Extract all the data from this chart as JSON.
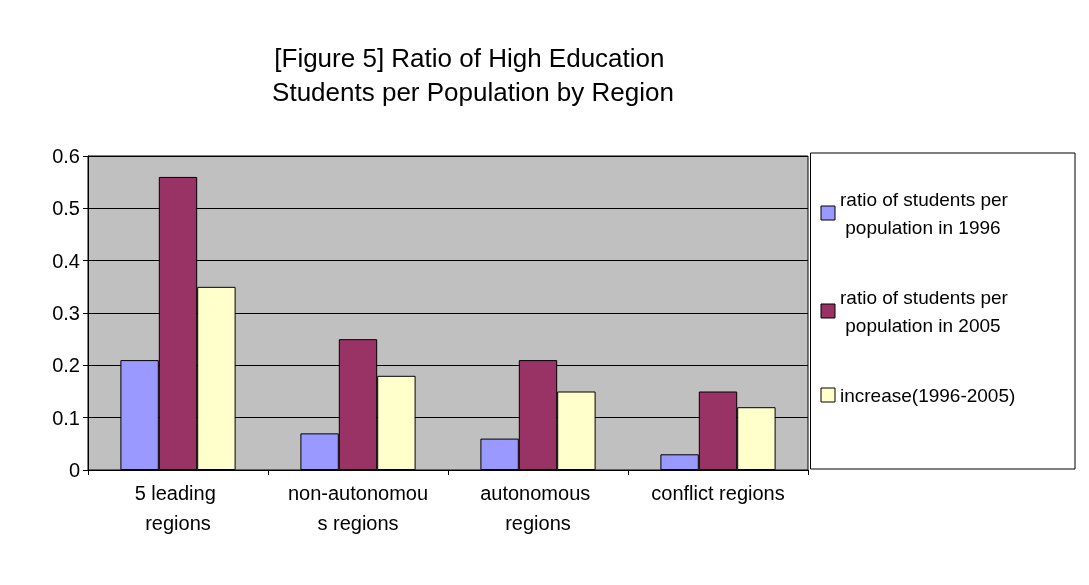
{
  "chart_data": {
    "type": "bar",
    "title": "[Figure 5] Ratio of High Education Students per Population by Region",
    "categories": [
      "5 leading regions",
      "non-autonomous regions",
      "autonomous regions",
      "conflict regions"
    ],
    "series": [
      {
        "name": "ratio of students per population in 1996",
        "color": "#9999ff",
        "values": [
          0.21,
          0.07,
          0.06,
          0.03
        ]
      },
      {
        "name": "ratio of students per population in 2005",
        "color": "#993366",
        "values": [
          0.56,
          0.25,
          0.21,
          0.15
        ]
      },
      {
        "name": "increase(1996-2005)",
        "color": "#ffffcc",
        "values": [
          0.35,
          0.18,
          0.15,
          0.12
        ]
      }
    ],
    "ylim": [
      0,
      0.6
    ],
    "yticks": [
      0,
      0.1,
      0.2,
      0.3,
      0.4,
      0.5,
      0.6
    ],
    "grid": "y",
    "legend": "right"
  }
}
